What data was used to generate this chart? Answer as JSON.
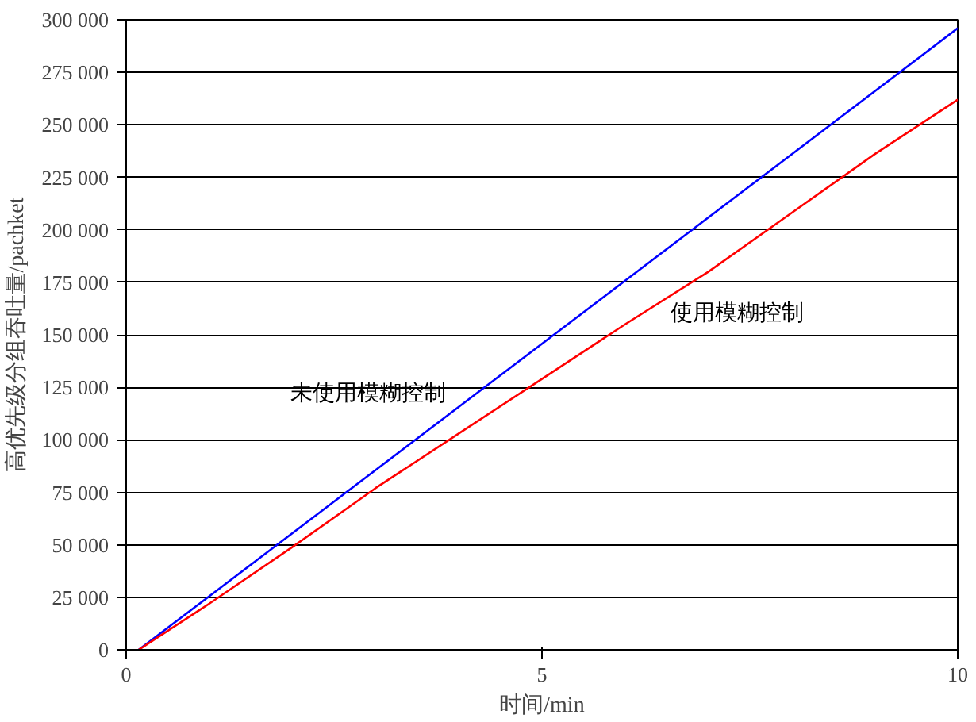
{
  "chart_data": {
    "type": "line",
    "xlabel": "时间/min",
    "ylabel": "高优先级分组吞吐量/pachket",
    "xlim": [
      0,
      10
    ],
    "xticks": [
      0,
      5,
      10
    ],
    "ylim": [
      0,
      300000
    ],
    "yticks": [
      {
        "value": 0,
        "label": "0"
      },
      {
        "value": 25000,
        "label": "25 000"
      },
      {
        "value": 50000,
        "label": "50 000"
      },
      {
        "value": 75000,
        "label": "75 000"
      },
      {
        "value": 100000,
        "label": "100 000"
      },
      {
        "value": 125000,
        "label": "125 000"
      },
      {
        "value": 150000,
        "label": "150 000"
      },
      {
        "value": 175000,
        "label": "175 000"
      },
      {
        "value": 200000,
        "label": "200 000"
      },
      {
        "value": 225000,
        "label": "225 000"
      },
      {
        "value": 250000,
        "label": "250 000"
      },
      {
        "value": 275000,
        "label": "275 000"
      },
      {
        "value": 300000,
        "label": "300 000"
      }
    ],
    "grid": "y",
    "marker": "none",
    "line_style": "solid",
    "series": [
      {
        "name": "未使用模糊控制",
        "color": "#0000ff",
        "x": [
          0.15,
          10
        ],
        "values": [
          0,
          296000
        ]
      },
      {
        "name": "使用模糊控制",
        "color": "#ff0000",
        "x": [
          0.15,
          1,
          2,
          3,
          4,
          5,
          6,
          7,
          8,
          9,
          10
        ],
        "values": [
          0,
          22000,
          49000,
          77000,
          103000,
          129000,
          155000,
          180000,
          208000,
          236000,
          262000
        ]
      }
    ]
  }
}
